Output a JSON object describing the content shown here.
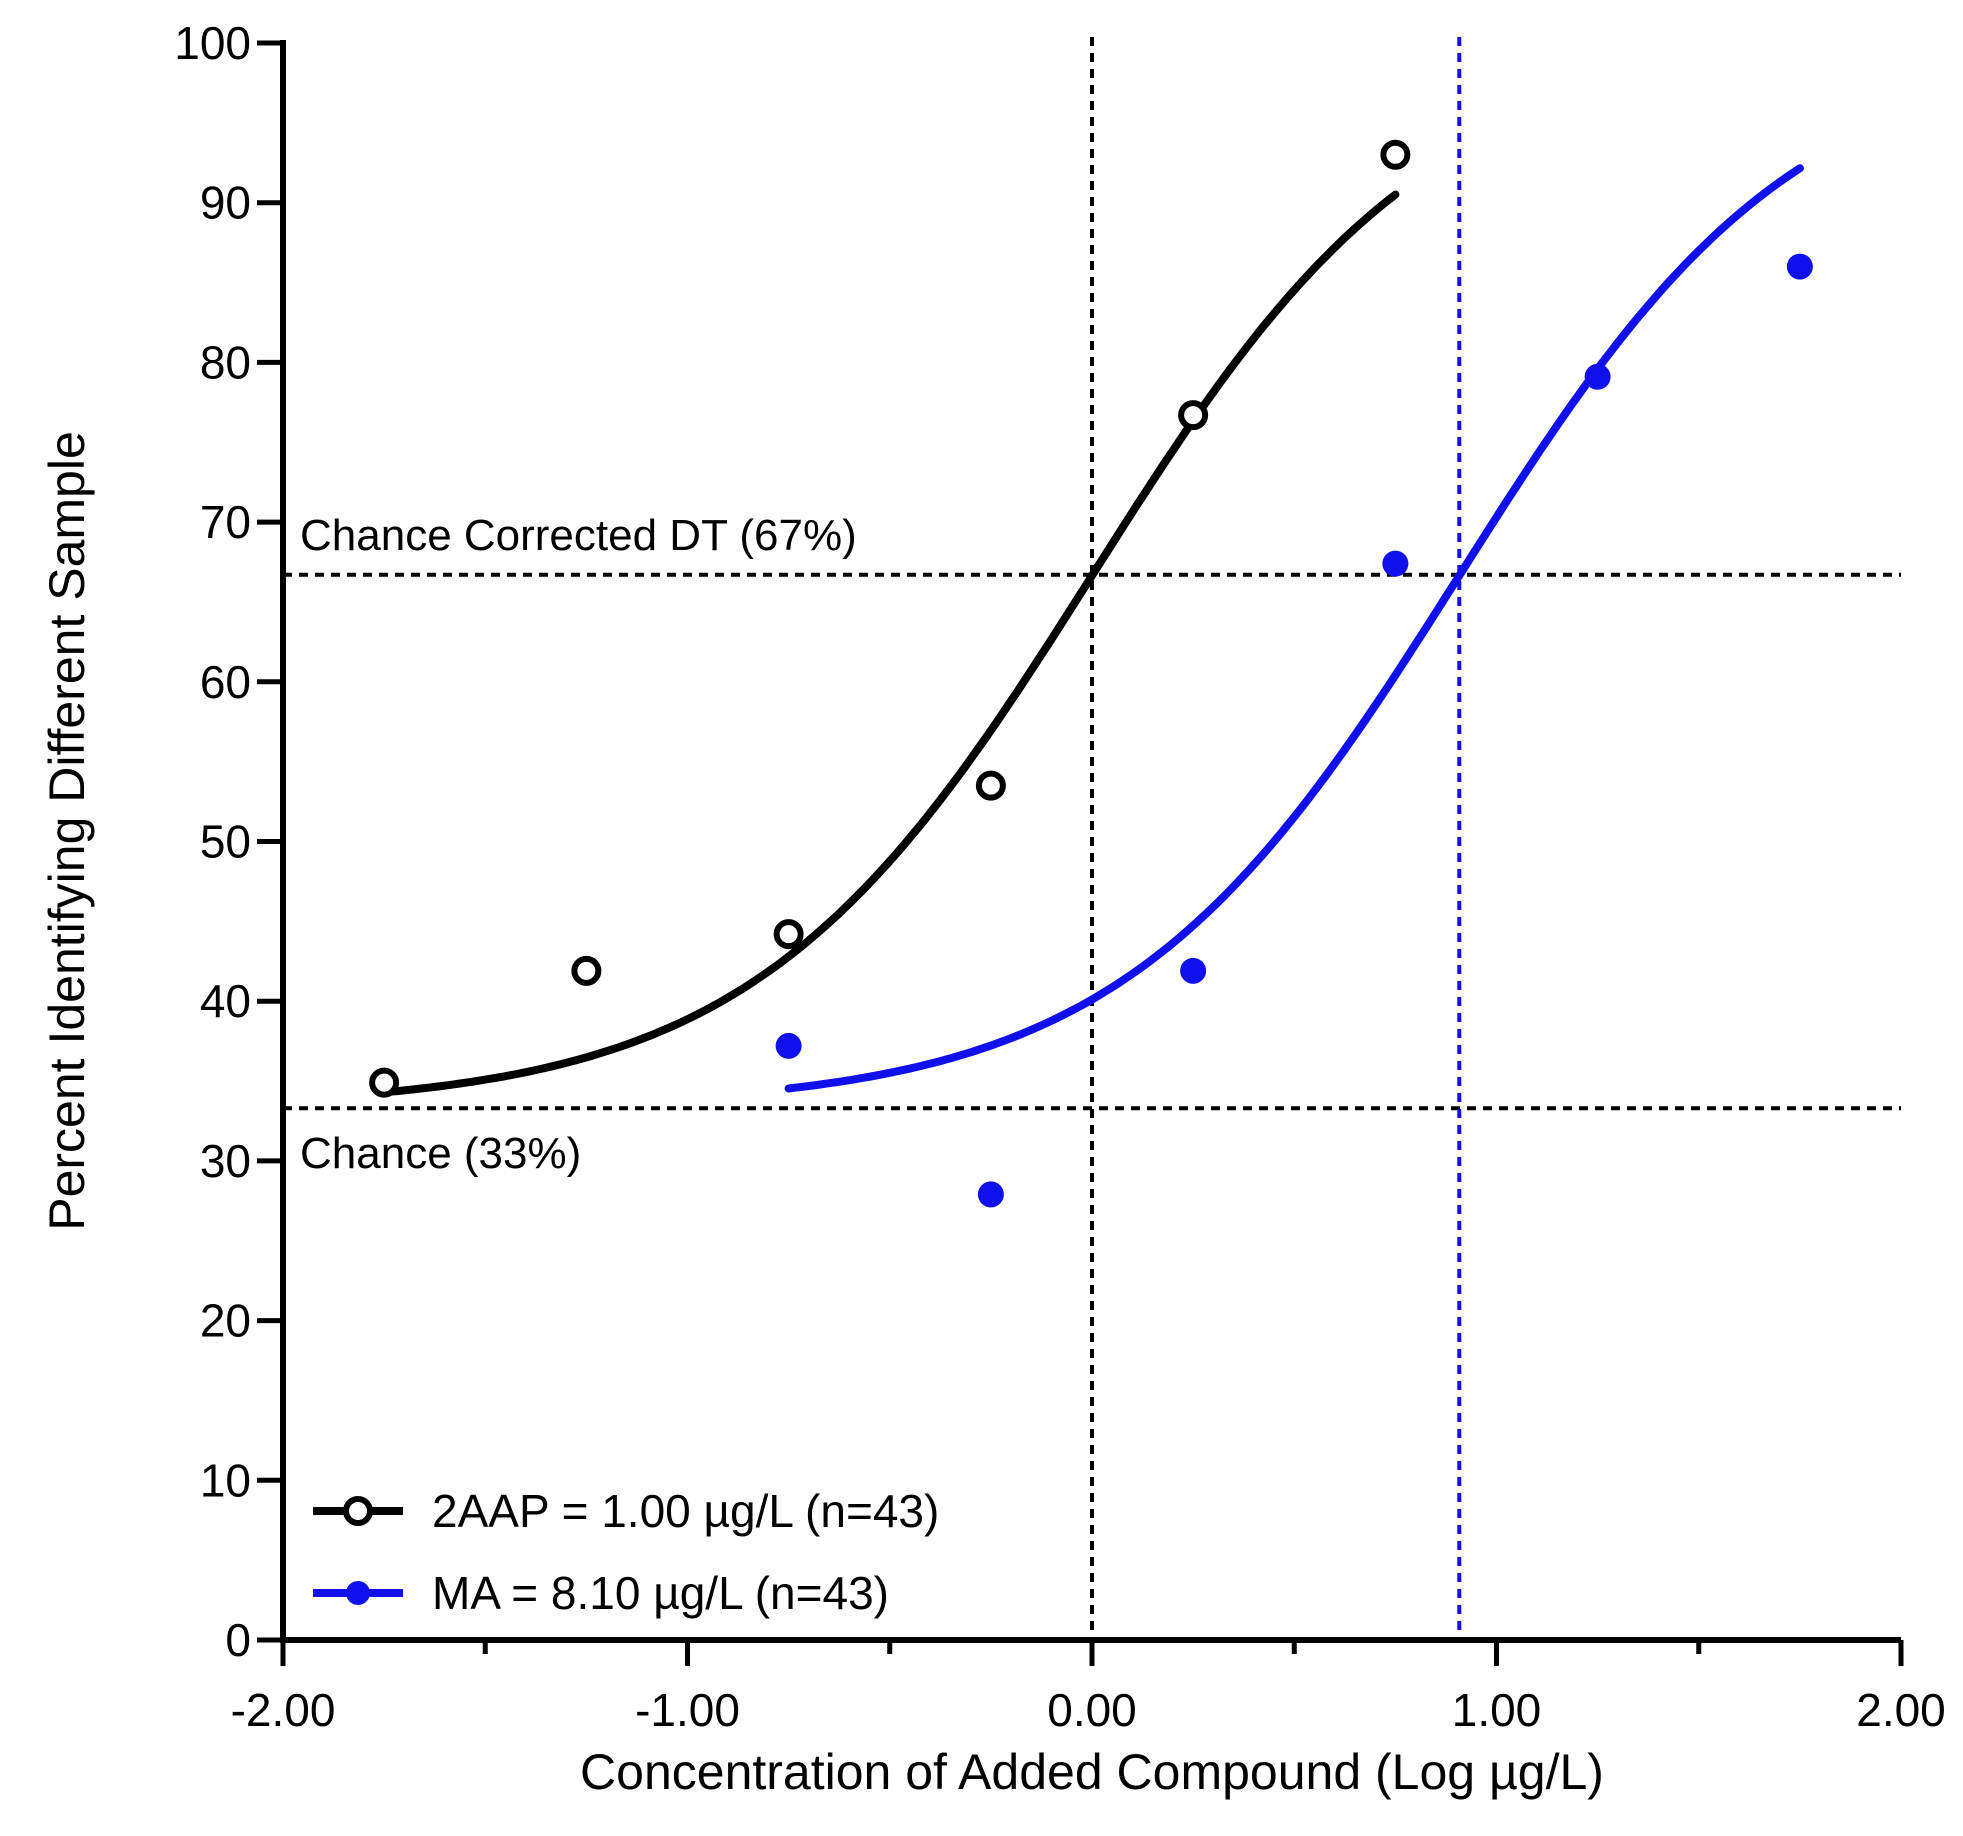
{
  "chart_data": {
    "type": "scatter",
    "xlabel": "Concentration of Added Compound (Log µg/L)",
    "ylabel": "Percent Identifying Different Sample",
    "xlim": [
      -2.0,
      2.0
    ],
    "ylim": [
      0,
      100
    ],
    "x_ticks": [
      -2.0,
      -1.0,
      0.0,
      1.0,
      2.0
    ],
    "x_tick_labels": [
      "-2.00",
      "-1.00",
      "0.00",
      "1.00",
      "2.00"
    ],
    "x_minor_ticks": [
      -1.5,
      -0.5,
      0.5,
      1.5
    ],
    "y_ticks": [
      0,
      10,
      20,
      30,
      40,
      50,
      60,
      70,
      80,
      90,
      100
    ],
    "y_tick_labels": [
      "0",
      "10",
      "20",
      "30",
      "40",
      "50",
      "60",
      "70",
      "80",
      "90",
      "100"
    ],
    "grid": false,
    "legend_position": "bottom-left",
    "series": [
      {
        "name": "2AAP = 1.00 µg/L (n=43)",
        "color": "#000000",
        "marker": "open-circle",
        "x": [
          -1.75,
          -1.25,
          -0.75,
          -0.25,
          0.25,
          0.75
        ],
        "y": [
          34.9,
          41.9,
          44.2,
          53.5,
          76.7,
          93.0
        ],
        "fit": {
          "x_from": -1.75,
          "x_to": 0.75,
          "bottom": 33.3,
          "top": 100,
          "log_ec50": 0.0,
          "slope": 1.04
        }
      },
      {
        "name": "MA = 8.10 µg/L (n=43)",
        "color": "#1010ee",
        "marker": "filled-circle",
        "x": [
          -0.75,
          -0.25,
          0.25,
          0.75,
          1.25,
          1.75
        ],
        "y": [
          37.2,
          27.9,
          41.9,
          67.4,
          79.1,
          86.0
        ],
        "fit": {
          "x_from": -0.75,
          "x_to": 1.75,
          "bottom": 33.3,
          "top": 100,
          "log_ec50": 0.908,
          "slope": 1.04
        }
      }
    ],
    "reference_lines": [
      {
        "orientation": "horizontal",
        "value": 66.7,
        "color": "#000000",
        "label": "Chance Corrected DT (67%)"
      },
      {
        "orientation": "horizontal",
        "value": 33.3,
        "color": "#000000",
        "label": "Chance (33%)"
      },
      {
        "orientation": "vertical",
        "value": 0.0,
        "color": "#000000"
      },
      {
        "orientation": "vertical",
        "value": 0.908,
        "color": "#1010ee"
      }
    ]
  }
}
